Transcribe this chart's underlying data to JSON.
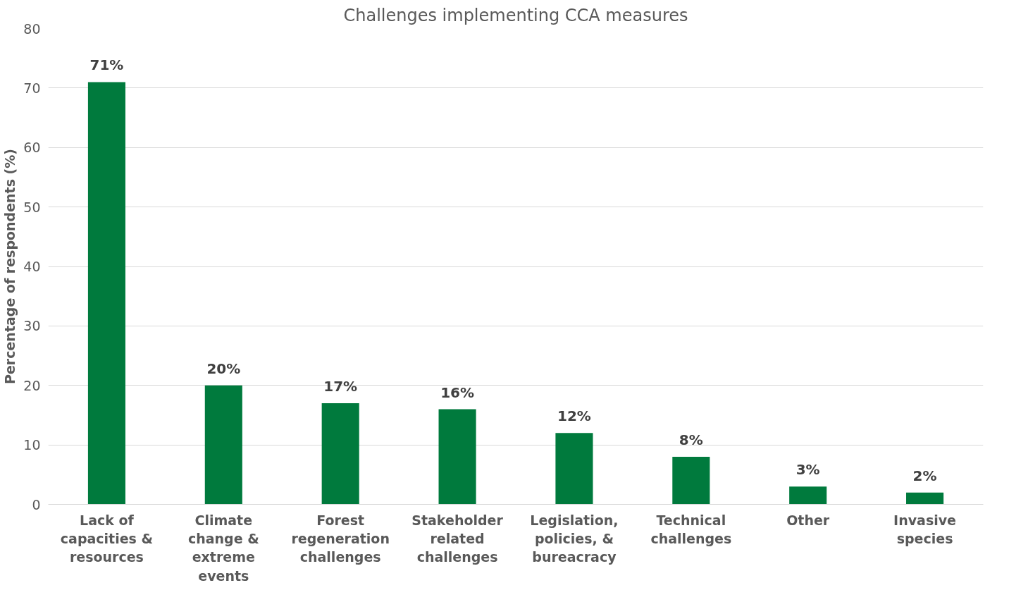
{
  "chart_data": {
    "type": "bar",
    "title": "Challenges implementing CCA measures",
    "ylabel": "Percentage of respondents (%)",
    "categories": [
      "Lack of capacities & resources",
      "Climate change & extreme events",
      "Forest regeneration challenges",
      "Stakeholder related challenges",
      "Legislation, policies, & bureacracy",
      "Technical challenges",
      "Other",
      "Invasive species"
    ],
    "values": [
      71,
      20,
      17,
      16,
      12,
      8,
      3,
      2
    ],
    "value_labels": [
      "71%",
      "20%",
      "17%",
      "16%",
      "12%",
      "8%",
      "3%",
      "2%"
    ],
    "color": "#007a3d",
    "ylim": [
      0,
      80
    ],
    "yticks": [
      0,
      10,
      20,
      30,
      40,
      50,
      60,
      70,
      80
    ],
    "grid": "y"
  }
}
